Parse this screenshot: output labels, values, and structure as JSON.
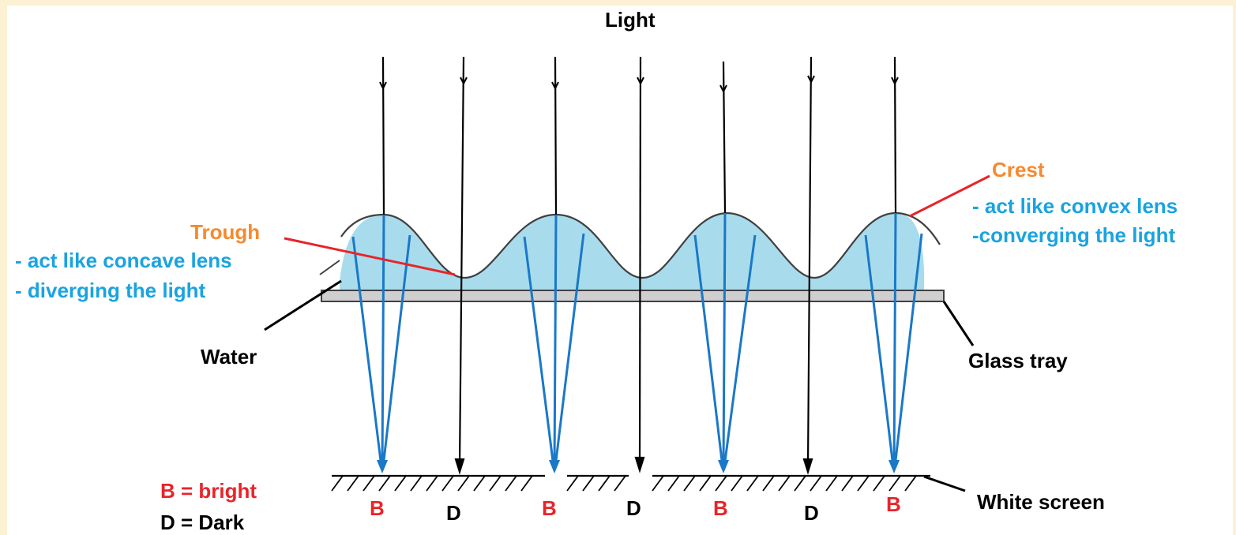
{
  "title": "Light",
  "labels": {
    "crest": "Crest",
    "crest_note_1": "- act like convex lens",
    "crest_note_2": "-converging the light",
    "trough": "Trough",
    "trough_note_1": "- act like concave lens",
    "trough_note_2": "- diverging the light",
    "water": "Water",
    "glass_tray": "Glass tray",
    "white_screen": "White screen"
  },
  "screen_marks": [
    "B",
    "D",
    "B",
    "D",
    "B",
    "D",
    "B"
  ],
  "legend": {
    "bright": "B = bright",
    "dark": "D = Dark"
  },
  "colors": {
    "water": "#a8dcec",
    "converging_rays": "#1a78c8",
    "incident_rays": "#000000",
    "pointer_line": "#e8242a",
    "bright_label": "#e8242a",
    "note_text": "#1aa3e0",
    "label_orange": "#f58a2e"
  }
}
